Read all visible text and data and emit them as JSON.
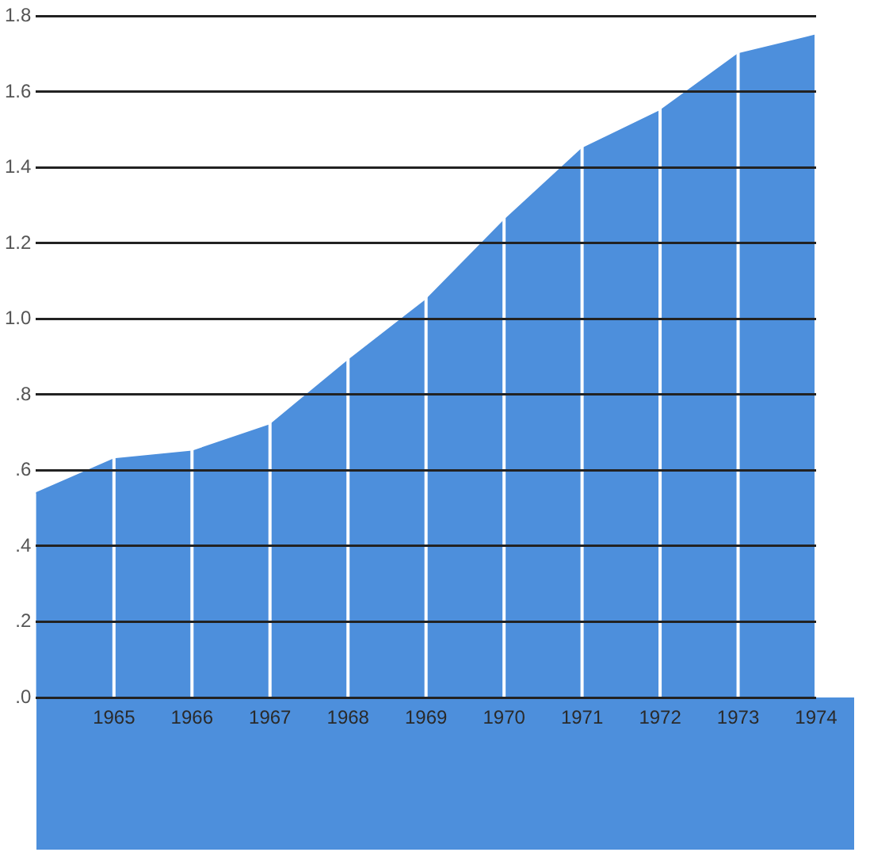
{
  "chart_data": {
    "type": "area",
    "x": [
      1964,
      1965,
      1966,
      1967,
      1968,
      1969,
      1970,
      1971,
      1972,
      1973,
      1974
    ],
    "series": [
      {
        "color": "#4d8fdc",
        "values": [
          0.54,
          0.63,
          0.65,
          0.72,
          0.89,
          1.05,
          1.26,
          1.45,
          1.55,
          1.7,
          1.75
        ]
      }
    ],
    "xlim": [
      1964,
      1974
    ],
    "xticks": [
      1965,
      1966,
      1967,
      1968,
      1969,
      1970,
      1971,
      1972,
      1973,
      1974
    ],
    "ylim": [
      0,
      1.8
    ],
    "yticks": [
      {
        "value": 0,
        "label": ".0"
      },
      {
        "value": 0.2,
        "label": ".2"
      },
      {
        "value": 0.4,
        "label": ".4"
      },
      {
        "value": 0.6,
        "label": ".6"
      },
      {
        "value": 0.8,
        "label": ".8"
      },
      {
        "value": 1,
        "label": "1.0"
      },
      {
        "value": 1.2,
        "label": "1.2"
      },
      {
        "value": 1.4,
        "label": "1.4"
      },
      {
        "value": 1.6,
        "label": "1.6"
      },
      {
        "value": 1.8,
        "label": "1.8"
      }
    ],
    "grid": true,
    "legend": false
  }
}
